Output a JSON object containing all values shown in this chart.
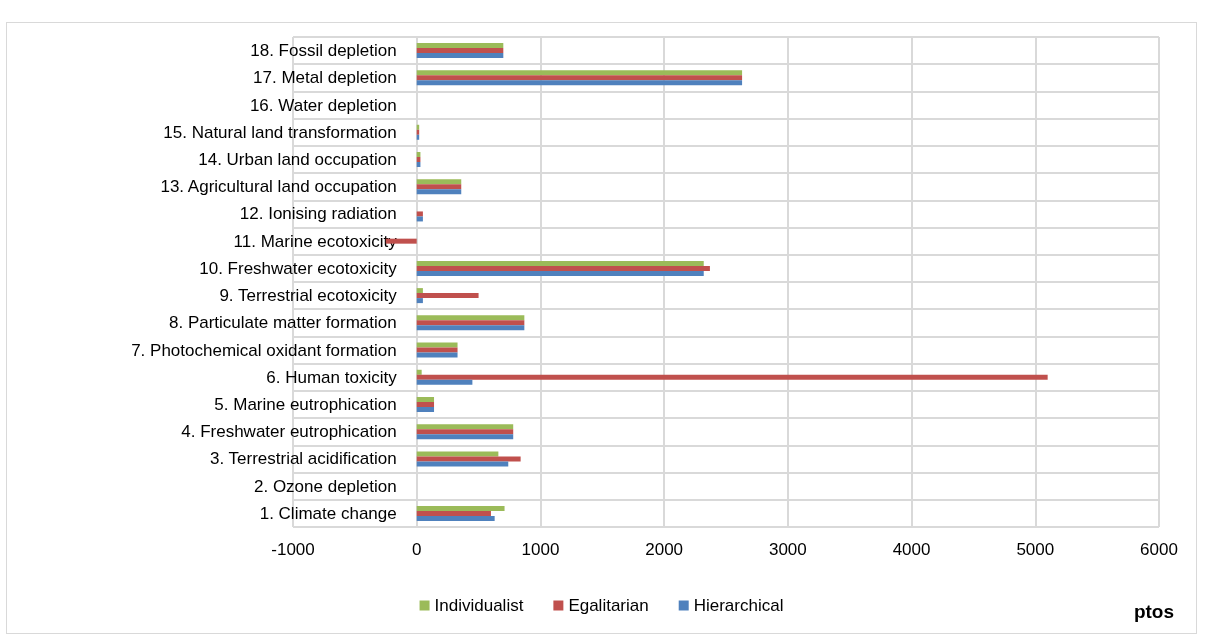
{
  "chart_data": {
    "type": "bar",
    "orientation": "horizontal",
    "xlabel": "ptos",
    "categories": [
      "18. Fossil depletion",
      "17. Metal depletion",
      "16. Water depletion",
      "15. Natural land transformation",
      "14. Urban land occupation",
      "13. Agricultural land occupation",
      "12. Ionising radiation",
      "11. Marine ecotoxicity",
      "10. Freshwater ecotoxicity",
      "9. Terrestrial ecotoxicity",
      "8. Particulate matter formation",
      "7. Photochemical oxidant formation",
      "6. Human toxicity",
      "5. Marine eutrophication",
      "4. Freshwater eutrophication",
      "3. Terrestrial acidification",
      "2. Ozone depletion",
      "1. Climate change"
    ],
    "series": [
      {
        "name": "Individualist",
        "color": "#9bbb59",
        "values": [
          700,
          2630,
          0,
          20,
          30,
          360,
          0,
          0,
          2320,
          50,
          870,
          330,
          40,
          140,
          780,
          660,
          0,
          710
        ]
      },
      {
        "name": "Egalitarian",
        "color": "#c0504d",
        "values": [
          700,
          2630,
          0,
          20,
          30,
          360,
          50,
          -250,
          2370,
          500,
          870,
          330,
          5100,
          140,
          780,
          840,
          0,
          600
        ]
      },
      {
        "name": "Hierarchical",
        "color": "#4f81bd",
        "values": [
          700,
          2630,
          0,
          20,
          30,
          360,
          50,
          0,
          2320,
          50,
          870,
          330,
          450,
          140,
          780,
          740,
          0,
          630
        ]
      }
    ],
    "xlim": [
      -1000,
      6000
    ],
    "xticks": [
      -1000,
      0,
      1000,
      2000,
      3000,
      4000,
      5000,
      6000
    ],
    "grid": true,
    "legend": "bottom"
  }
}
